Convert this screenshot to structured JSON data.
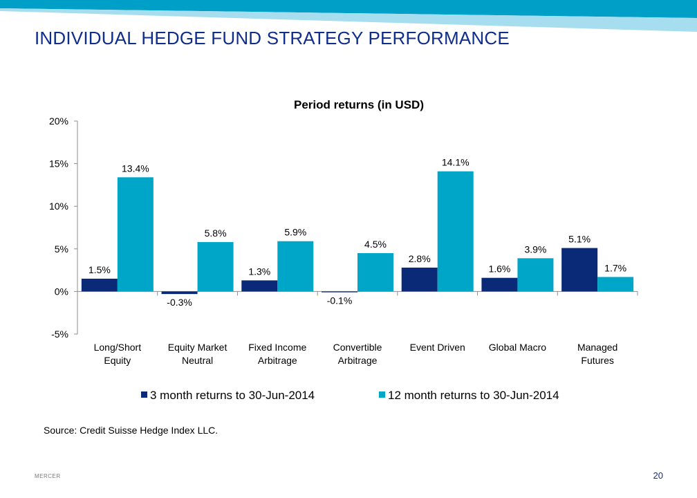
{
  "slide": {
    "title": "INDIVIDUAL HEDGE FUND STRATEGY PERFORMANCE",
    "source": "Source: Credit Suisse Hedge Index LLC.",
    "footer_brand": "MERCER",
    "page_number": "20"
  },
  "colors": {
    "title": "#0f2d8c",
    "series_3m": "#0a2a78",
    "series_12m": "#00a6c8",
    "band_dark": "#009fc7",
    "band_light": "#9fdcef"
  },
  "chart_data": {
    "type": "bar",
    "title": "Period returns (in USD)",
    "categories": [
      [
        "Long/Short",
        "Equity"
      ],
      [
        "Equity Market",
        "Neutral"
      ],
      [
        "Fixed Income",
        "Arbitrage"
      ],
      [
        "Convertible",
        "Arbitrage"
      ],
      [
        "Event Driven"
      ],
      [
        "Global Macro"
      ],
      [
        "Managed",
        "Futures"
      ]
    ],
    "series": [
      {
        "name": "3 month returns to 30-Jun-2014",
        "values": [
          1.5,
          -0.3,
          1.3,
          -0.1,
          2.8,
          1.6,
          5.1
        ],
        "labels": [
          "1.5%",
          "-0.3%",
          "1.3%",
          "-0.1%",
          "2.8%",
          "1.6%",
          "5.1%"
        ]
      },
      {
        "name": "12 month returns to 30-Jun-2014",
        "values": [
          13.4,
          5.8,
          5.9,
          4.5,
          14.1,
          3.9,
          1.7
        ],
        "labels": [
          "13.4%",
          "5.8%",
          "5.9%",
          "4.5%",
          "14.1%",
          "3.9%",
          "1.7%"
        ]
      }
    ],
    "ylim": [
      -5,
      20
    ],
    "yticks": [
      20,
      15,
      10,
      5,
      0,
      -5
    ],
    "ytick_labels": [
      "20%",
      "15%",
      "10%",
      "5%",
      "0%",
      "-5%"
    ],
    "grid": false,
    "legend": "bottom"
  }
}
